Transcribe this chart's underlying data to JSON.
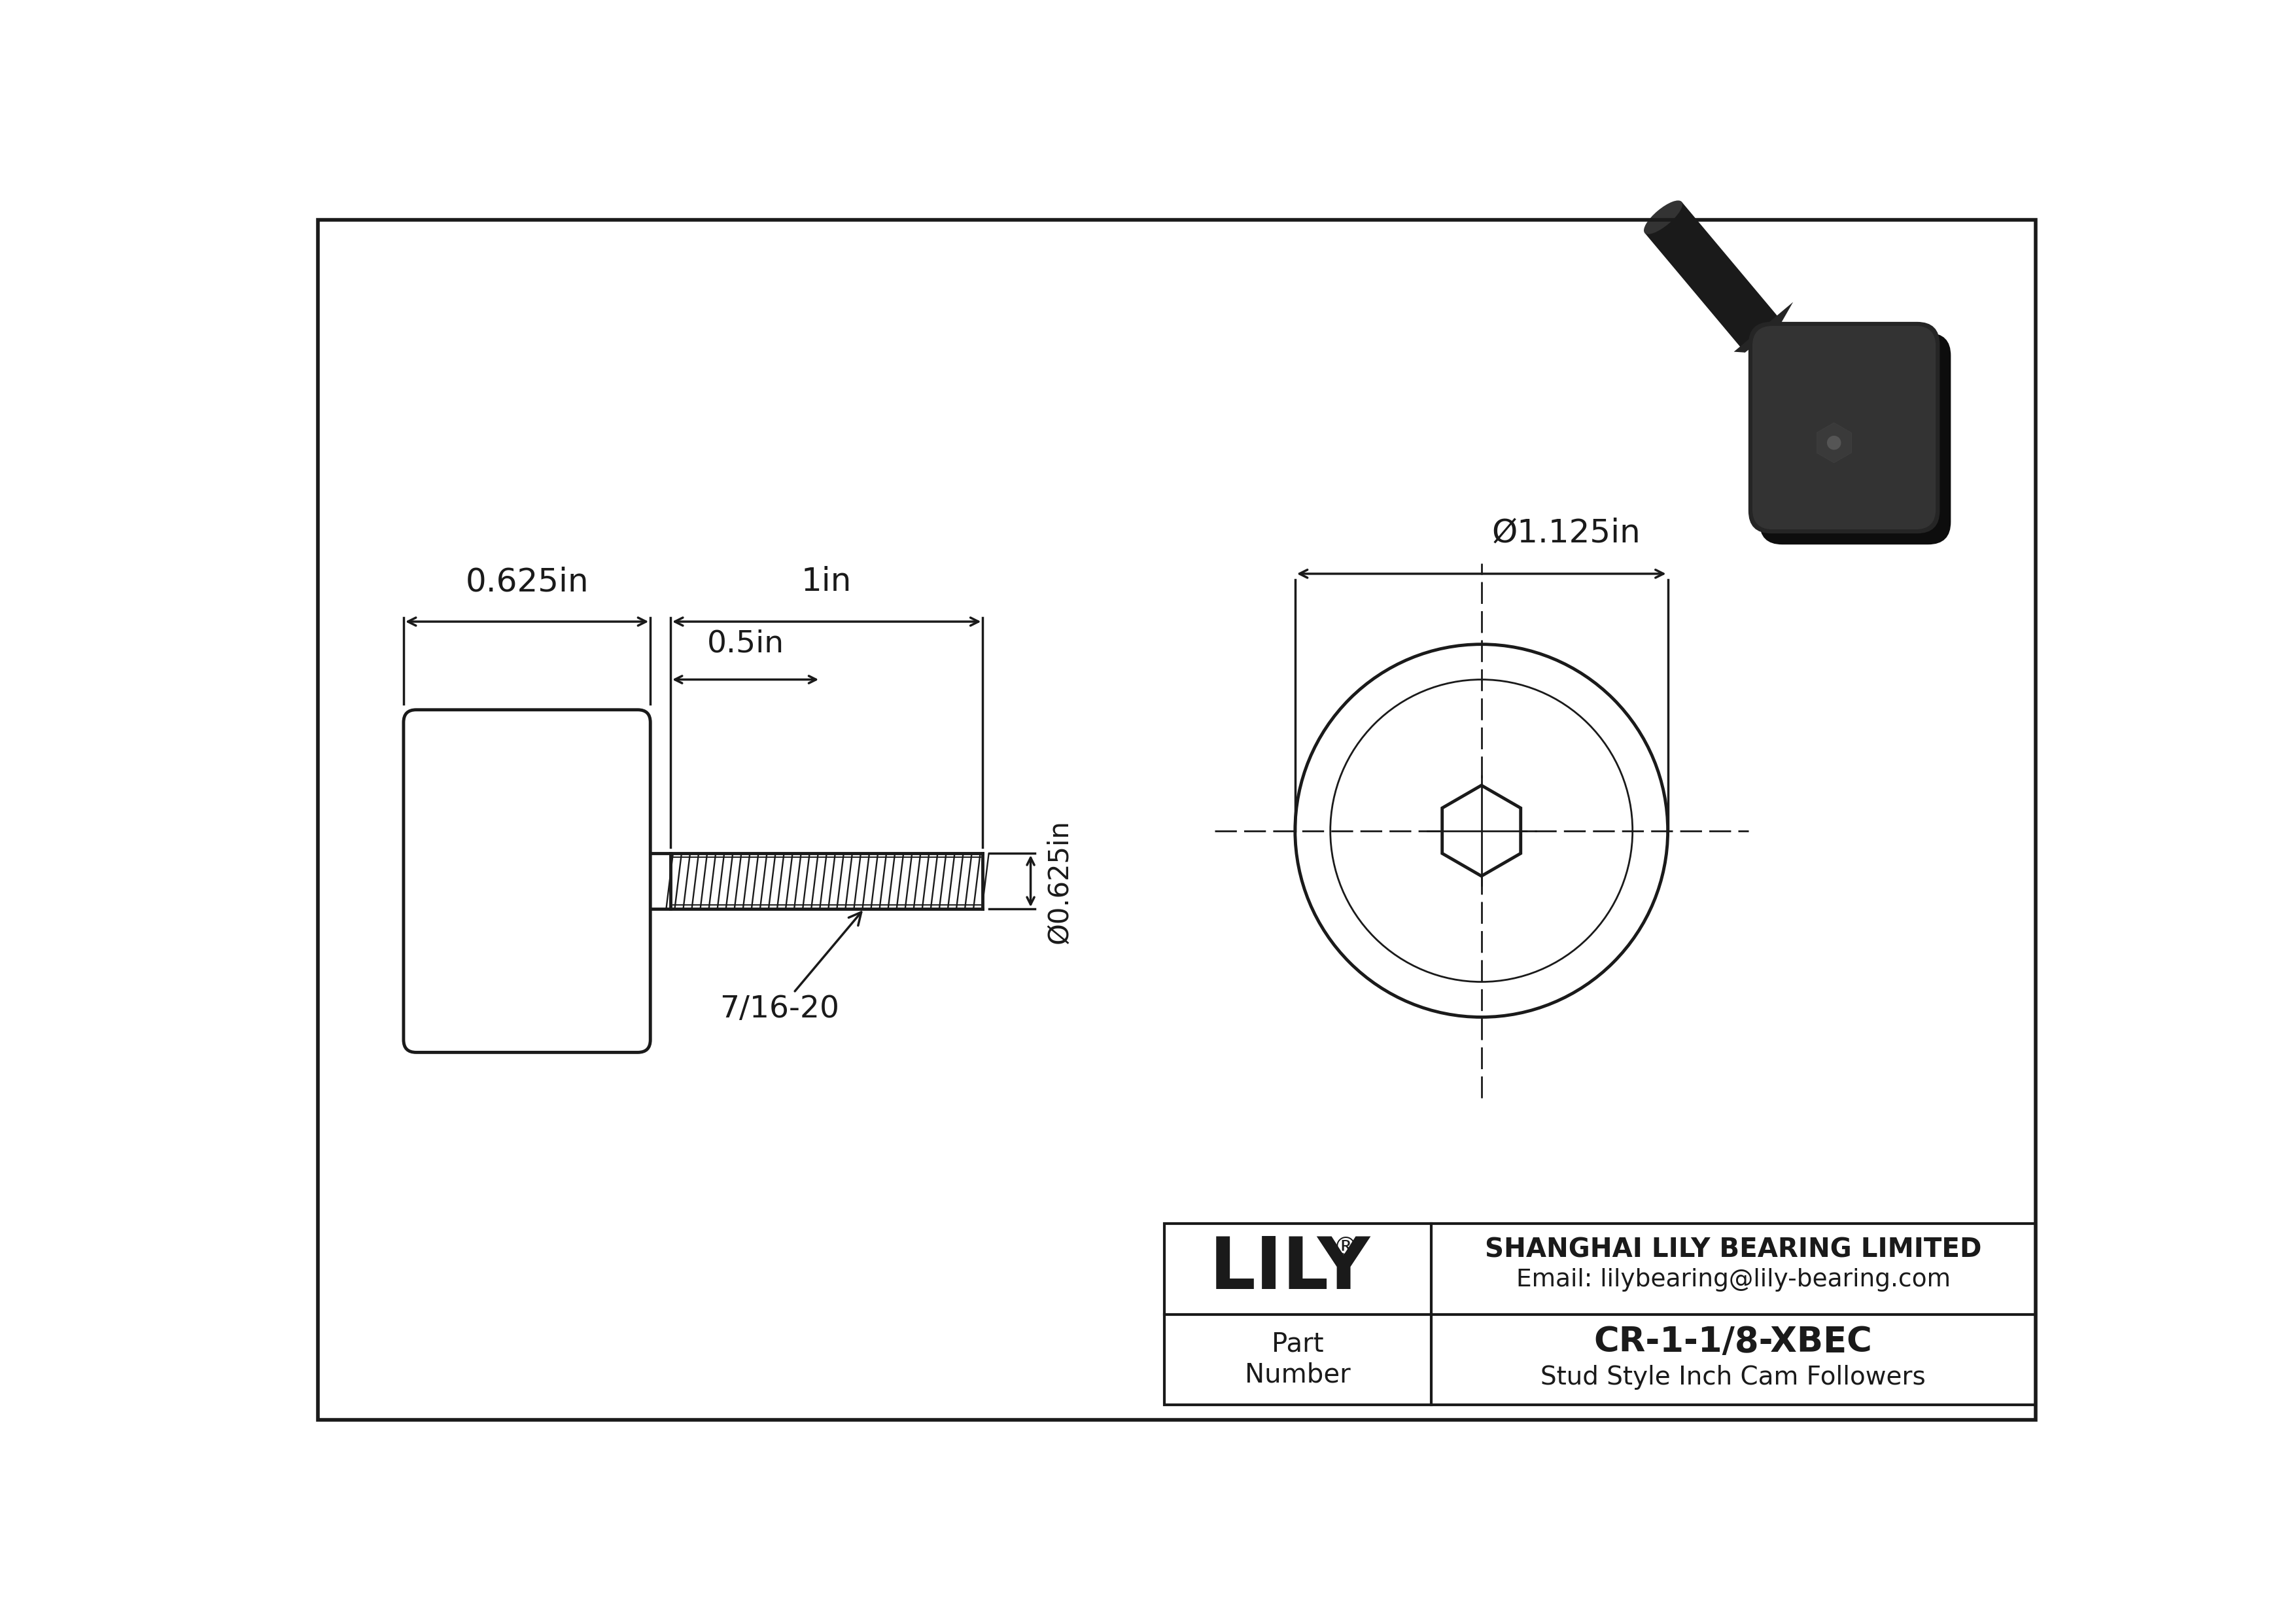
{
  "bg_color": "#ffffff",
  "line_color": "#1a1a1a",
  "lw_main": 3.5,
  "lw_thin": 2.0,
  "lw_dim": 2.5,
  "fs_dim": 36,
  "fs_small": 30,
  "fs_lily": 80,
  "fs_company": 27,
  "fs_part": 38,
  "fs_sub": 28,
  "title": "CR-1-1/8-XBEC",
  "subtitle": "Stud Style Inch Cam Followers",
  "company": "SHANGHAI LILY BEARING LIMITED",
  "email": "Email: lilybearing@lily-bearing.com",
  "part_label": "Part\nNumber",
  "dim_625": "0.625in",
  "dim_1in": "1in",
  "dim_05in": "0.5in",
  "dim_d625": "Ø0.625in",
  "dim_d1125": "Ø1.125in",
  "dim_thread": "7/16-20"
}
